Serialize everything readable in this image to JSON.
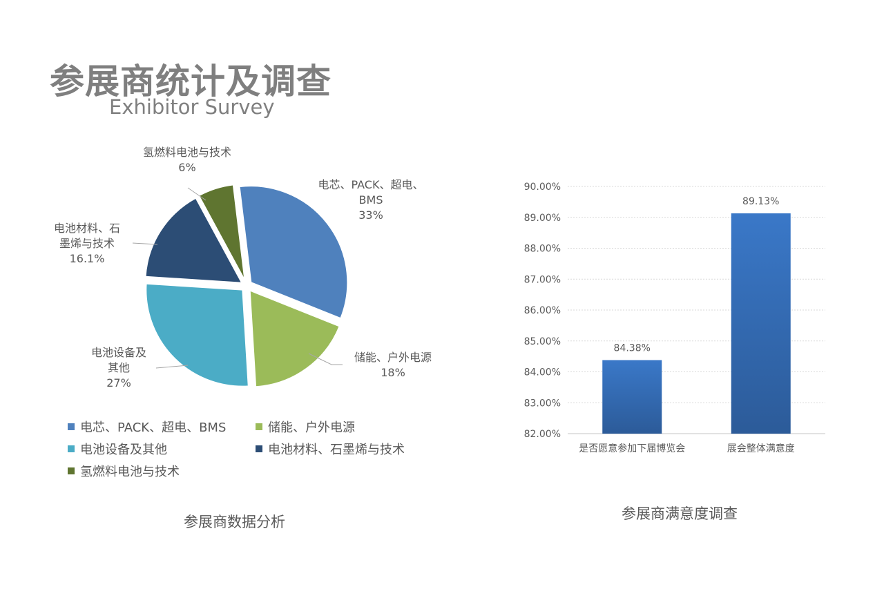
{
  "header": {
    "title": "参展商统计及调查",
    "subtitle": "Exhibitor Survey"
  },
  "chart_data": [
    {
      "type": "pie",
      "title": "参展商数据分析",
      "legend_position": "bottom",
      "slices": [
        {
          "name": "电芯、PACK、超电、BMS",
          "value": 33,
          "label": "33%",
          "color": "#4f81bd",
          "data_label": [
            "电芯、PACK、超电、",
            "BMS"
          ]
        },
        {
          "name": "储能、户外电源",
          "value": 18,
          "label": "18%",
          "color": "#9bbb59",
          "data_label": [
            "储能、户外电源"
          ]
        },
        {
          "name": "电池设备及其他",
          "value": 27,
          "label": "27%",
          "color": "#4bacc6",
          "data_label": [
            "电池设备及",
            "其他"
          ]
        },
        {
          "name": "电池材料、石墨烯与技术",
          "value": 16.1,
          "label": "16.1%",
          "color": "#2c4d75",
          "data_label": [
            "电池材料、石",
            "墨烯与技术"
          ]
        },
        {
          "name": "氢燃料电池与技术",
          "value": 6,
          "label": "6%",
          "color": "#5f7530",
          "data_label": [
            "氢燃料电池与技术"
          ]
        }
      ]
    },
    {
      "type": "bar",
      "title": "参展商满意度调查",
      "categories": [
        "是否愿意参加下届博览会",
        "展会整体满意度"
      ],
      "values": [
        84.38,
        89.13
      ],
      "value_labels": [
        "84.38%",
        "89.13%"
      ],
      "ylim": [
        82,
        90
      ],
      "yticks": [
        "82.00%",
        "83.00%",
        "84.00%",
        "85.00%",
        "86.00%",
        "87.00%",
        "88.00%",
        "89.00%",
        "90.00%"
      ],
      "grid": true,
      "bar_color": "#3a78c8"
    }
  ]
}
